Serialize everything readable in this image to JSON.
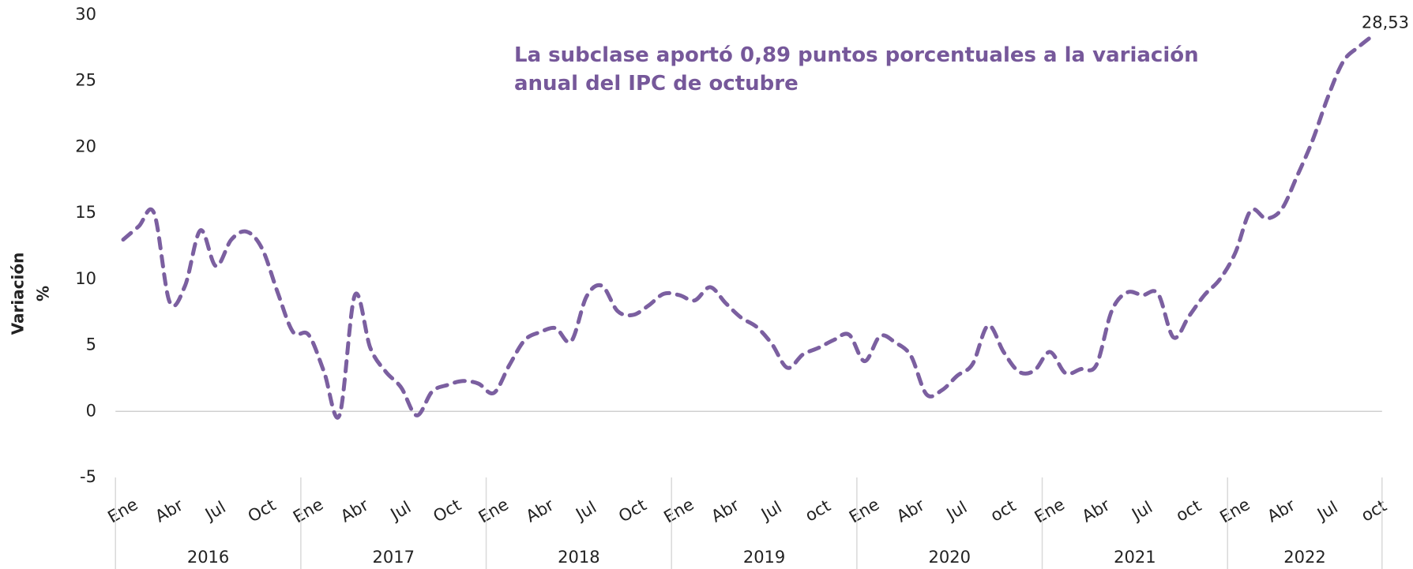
{
  "chart_data": {
    "type": "line",
    "annotation": [
      "La subclase aportó 0,89 puntos porcentuales a la variación",
      "anual del IPC de octubre"
    ],
    "y_label": [
      "Variación",
      "%"
    ],
    "years": [
      "2016",
      "2017",
      "2018",
      "2019",
      "2020",
      "2021",
      "2022"
    ],
    "categories": [
      "Ene",
      null,
      null,
      "Abr",
      null,
      null,
      "Jul",
      null,
      null,
      "Oct",
      null,
      null,
      "Ene",
      null,
      null,
      "Abr",
      null,
      null,
      "Jul",
      null,
      null,
      "Oct",
      null,
      null,
      "Ene",
      null,
      null,
      "Abr",
      null,
      null,
      "Jul",
      null,
      null,
      "Oct",
      null,
      null,
      "Ene",
      null,
      null,
      "Abr",
      null,
      null,
      "Jul",
      null,
      null,
      "oct",
      null,
      null,
      "Ene",
      null,
      null,
      "Abr",
      null,
      null,
      "Jul",
      null,
      null,
      "oct",
      null,
      null,
      "Ene",
      null,
      null,
      "Abr",
      null,
      null,
      "Jul",
      null,
      null,
      "oct",
      null,
      null,
      "Ene",
      null,
      null,
      "Abr",
      null,
      null,
      "Jul",
      null,
      null,
      "oct"
    ],
    "series": [
      {
        "name": "Variación %",
        "color": "#7b5fa0",
        "values": [
          13.0,
          14.0,
          15.0,
          8.3,
          9.5,
          13.7,
          11.0,
          13.0,
          13.6,
          12.3,
          9.0,
          6.0,
          5.8,
          3.0,
          -0.3,
          8.8,
          4.8,
          3.0,
          1.8,
          -0.3,
          1.5,
          2.0,
          2.3,
          2.1,
          1.4,
          3.5,
          5.4,
          6.0,
          6.3,
          5.3,
          8.7,
          9.5,
          7.6,
          7.3,
          8.0,
          8.9,
          8.8,
          8.4,
          9.4,
          8.2,
          7.1,
          6.4,
          5.1,
          3.3,
          4.3,
          4.8,
          5.4,
          5.8,
          3.8,
          5.7,
          5.2,
          4.2,
          1.3,
          1.6,
          2.7,
          3.6,
          6.5,
          4.5,
          3.0,
          3.1,
          4.5,
          2.9,
          3.2,
          3.5,
          7.6,
          9.0,
          8.8,
          8.9,
          5.6,
          7.2,
          8.8,
          10.0,
          12.0,
          15.2,
          14.6,
          15.3,
          17.8,
          20.5,
          23.8,
          26.5,
          27.6,
          28.53
        ],
        "value_labels": [
          null,
          null,
          null,
          null,
          null,
          null,
          null,
          null,
          null,
          null,
          null,
          null,
          null,
          null,
          null,
          null,
          null,
          null,
          null,
          null,
          null,
          null,
          null,
          null,
          null,
          null,
          null,
          null,
          null,
          null,
          null,
          null,
          null,
          null,
          null,
          null,
          null,
          null,
          null,
          null,
          null,
          null,
          null,
          null,
          null,
          null,
          null,
          null,
          null,
          null,
          null,
          null,
          null,
          null,
          null,
          null,
          null,
          null,
          null,
          null,
          null,
          null,
          null,
          null,
          null,
          null,
          null,
          null,
          null,
          null,
          null,
          null,
          null,
          null,
          null,
          null,
          null,
          null,
          null,
          null,
          null,
          "28,53"
        ]
      }
    ],
    "ylim": [
      -5,
      30
    ],
    "yticks": [
      -5,
      0,
      5,
      10,
      15,
      20,
      25,
      30
    ],
    "grid": false,
    "dashed": true,
    "smooth": true
  }
}
